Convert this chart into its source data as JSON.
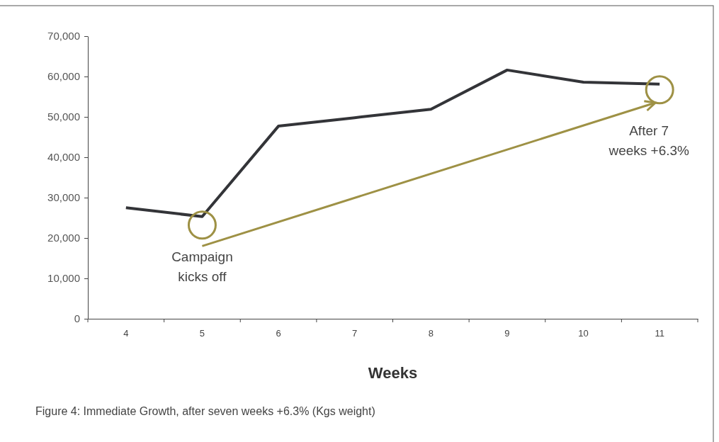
{
  "chart_data": {
    "type": "line",
    "title": "Figure 4: Immediate Growth, after seven weeks +6.3% (Kgs weight)",
    "xlabel": "Weeks",
    "categories": [
      "4",
      "5",
      "6",
      "7",
      "8",
      "9",
      "10",
      "11"
    ],
    "series": [
      {
        "color": "#333438",
        "values": [
          27500,
          25300,
          47700,
          49800,
          51900,
          61600,
          58600,
          58100
        ]
      }
    ],
    "ylim": [
      0,
      70000
    ],
    "yticks": [
      {
        "value": 0,
        "label": "0"
      },
      {
        "value": 10000,
        "label": "10,000"
      },
      {
        "value": 20000,
        "label": "20,000"
      },
      {
        "value": 30000,
        "label": "30,000"
      },
      {
        "value": 40000,
        "label": "40,000"
      },
      {
        "value": 50000,
        "label": "50,000"
      },
      {
        "value": 60000,
        "label": "60,000"
      },
      {
        "value": 70000,
        "label": "70,000"
      }
    ],
    "grid": false,
    "marker": "none",
    "line_style": "solid",
    "annotations": [
      {
        "text": "Campaign kicks off",
        "x": "5",
        "y": 25300
      },
      {
        "text": "After 7 weeks +6.3%",
        "x": "11",
        "y": 58100
      }
    ]
  }
}
